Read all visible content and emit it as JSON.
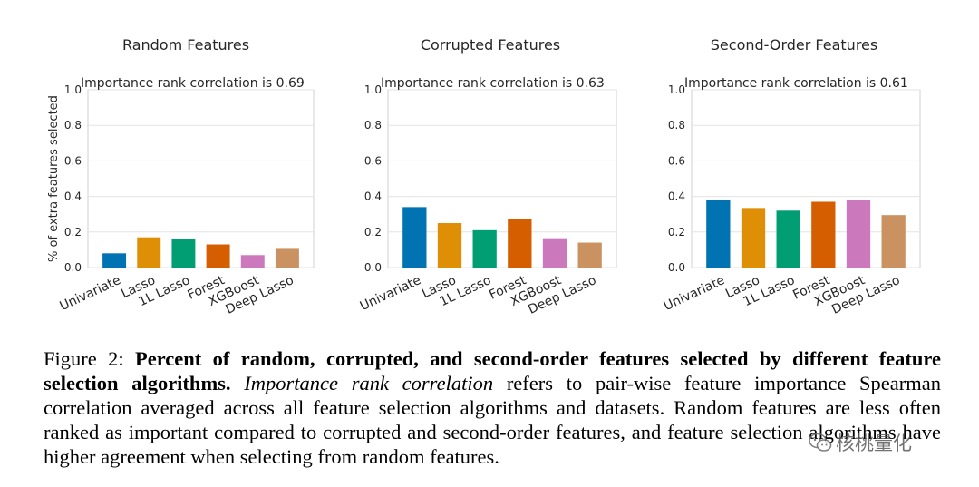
{
  "chart_data": [
    {
      "type": "bar",
      "title": "Random Features",
      "annotation": "Importance rank correlation is 0.69",
      "ylabel": "% of extra features selected",
      "ylim": [
        0,
        1.0
      ],
      "yticks": [
        "0.0",
        "0.2",
        "0.4",
        "0.6",
        "0.8",
        "1.0"
      ],
      "categories": [
        "Univariate",
        "Lasso",
        "1L Lasso",
        "Forest",
        "XGBoost",
        "Deep Lasso"
      ],
      "values": [
        0.08,
        0.17,
        0.16,
        0.13,
        0.07,
        0.105
      ]
    },
    {
      "type": "bar",
      "title": "Corrupted Features",
      "annotation": "Importance rank correlation is 0.63",
      "ylabel": "",
      "ylim": [
        0,
        1.0
      ],
      "yticks": [
        "0.0",
        "0.2",
        "0.4",
        "0.6",
        "0.8",
        "1.0"
      ],
      "categories": [
        "Univariate",
        "Lasso",
        "1L Lasso",
        "Forest",
        "XGBoost",
        "Deep Lasso"
      ],
      "values": [
        0.34,
        0.25,
        0.21,
        0.275,
        0.165,
        0.14
      ]
    },
    {
      "type": "bar",
      "title": "Second-Order Features",
      "annotation": "Importance rank correlation is 0.61",
      "ylabel": "",
      "ylim": [
        0,
        1.0
      ],
      "yticks": [
        "0.0",
        "0.2",
        "0.4",
        "0.6",
        "0.8",
        "1.0"
      ],
      "categories": [
        "Univariate",
        "Lasso",
        "1L Lasso",
        "Forest",
        "XGBoost",
        "Deep Lasso"
      ],
      "values": [
        0.38,
        0.335,
        0.32,
        0.37,
        0.38,
        0.295
      ]
    }
  ],
  "colors": [
    "#0173b2",
    "#de8f05",
    "#029e73",
    "#d55e00",
    "#cc78bc",
    "#ca9161"
  ],
  "caption": {
    "label": "Figure 2: ",
    "bold": "Percent of random, corrupted, and second-order features selected by different feature selection algorithms.",
    "italic": "Importance rank correlation",
    "rest": " refers to pair-wise feature importance Spearman correlation averaged across all feature selection algorithms and datasets. Random features are less often ranked as important compared to corrupted and second-order features, and feature selection algorithms have higher agreement when selecting from random features."
  },
  "watermark": {
    "icon": "wechat-icon",
    "text": "核桃量化"
  }
}
